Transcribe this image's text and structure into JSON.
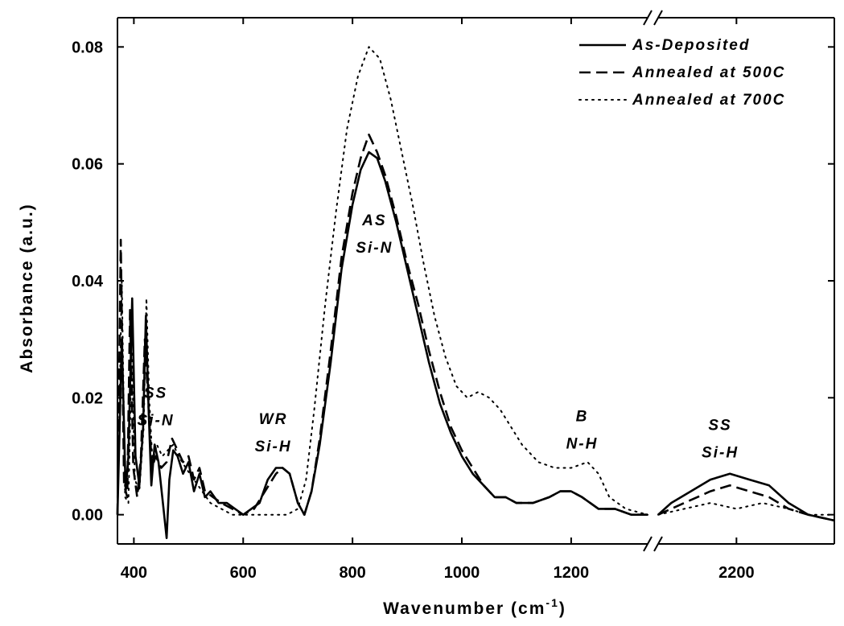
{
  "chart_data": {
    "type": "line",
    "xlabel": "Wavenumber (cm",
    "xlabel_superscript": "-1",
    "xlabel_suffix": ")",
    "ylabel": "Absorbance (a.u.)",
    "ylim": [
      -0.005,
      0.085
    ],
    "xlim": [
      370,
      2350
    ],
    "x_axis_break": {
      "from": 1340,
      "to": 2080
    },
    "x_ticks": [
      400,
      600,
      800,
      1000,
      1200,
      2200
    ],
    "x_tick_labels": [
      "400",
      "600",
      "800",
      "1000",
      "1200",
      "2200"
    ],
    "y_ticks": [
      0.0,
      0.02,
      0.04,
      0.06,
      0.08
    ],
    "y_tick_labels": [
      "0.00",
      "0.02",
      "0.04",
      "0.06",
      "0.08"
    ],
    "legend_position": "top-right",
    "series": [
      {
        "name": "As-Deposited",
        "style": "solid",
        "points": [
          [
            370,
            0.0
          ],
          [
            378,
            0.03
          ],
          [
            385,
            0.004
          ],
          [
            390,
            0.01
          ],
          [
            397,
            0.037
          ],
          [
            403,
            0.01
          ],
          [
            410,
            0.005
          ],
          [
            417,
            0.015
          ],
          [
            422,
            0.034
          ],
          [
            427,
            0.018
          ],
          [
            432,
            0.005
          ],
          [
            438,
            0.012
          ],
          [
            445,
            0.009
          ],
          [
            452,
            0.003
          ],
          [
            460,
            -0.004
          ],
          [
            465,
            0.006
          ],
          [
            472,
            0.011
          ],
          [
            480,
            0.01
          ],
          [
            490,
            0.007
          ],
          [
            500,
            0.009
          ],
          [
            510,
            0.004
          ],
          [
            520,
            0.007
          ],
          [
            530,
            0.003
          ],
          [
            540,
            0.004
          ],
          [
            555,
            0.002
          ],
          [
            570,
            0.002
          ],
          [
            585,
            0.001
          ],
          [
            600,
            0.0
          ],
          [
            615,
            0.001
          ],
          [
            630,
            0.002
          ],
          [
            645,
            0.006
          ],
          [
            660,
            0.008
          ],
          [
            672,
            0.008
          ],
          [
            685,
            0.007
          ],
          [
            700,
            0.002
          ],
          [
            712,
            0.0
          ],
          [
            725,
            0.004
          ],
          [
            740,
            0.012
          ],
          [
            760,
            0.026
          ],
          [
            780,
            0.042
          ],
          [
            800,
            0.053
          ],
          [
            815,
            0.059
          ],
          [
            830,
            0.062
          ],
          [
            845,
            0.061
          ],
          [
            860,
            0.057
          ],
          [
            880,
            0.05
          ],
          [
            900,
            0.042
          ],
          [
            920,
            0.034
          ],
          [
            940,
            0.026
          ],
          [
            960,
            0.019
          ],
          [
            980,
            0.014
          ],
          [
            1000,
            0.01
          ],
          [
            1020,
            0.007
          ],
          [
            1040,
            0.005
          ],
          [
            1060,
            0.003
          ],
          [
            1080,
            0.003
          ],
          [
            1100,
            0.002
          ],
          [
            1130,
            0.002
          ],
          [
            1160,
            0.003
          ],
          [
            1180,
            0.004
          ],
          [
            1200,
            0.004
          ],
          [
            1220,
            0.003
          ],
          [
            1250,
            0.001
          ],
          [
            1280,
            0.001
          ],
          [
            1310,
            0.0
          ],
          [
            1340,
            0.0
          ],
          [
            2080,
            0.0
          ],
          [
            2100,
            0.002
          ],
          [
            2130,
            0.004
          ],
          [
            2160,
            0.006
          ],
          [
            2190,
            0.007
          ],
          [
            2220,
            0.006
          ],
          [
            2250,
            0.005
          ],
          [
            2280,
            0.002
          ],
          [
            2310,
            0.0
          ],
          [
            2350,
            -0.001
          ]
        ]
      },
      {
        "name": "Annealed at 500C",
        "style": "dash",
        "points": [
          [
            370,
            0.0
          ],
          [
            376,
            0.047
          ],
          [
            382,
            0.005
          ],
          [
            388,
            0.003
          ],
          [
            393,
            0.035
          ],
          [
            399,
            0.008
          ],
          [
            406,
            0.003
          ],
          [
            413,
            0.01
          ],
          [
            420,
            0.03
          ],
          [
            426,
            0.02
          ],
          [
            433,
            0.008
          ],
          [
            440,
            0.01
          ],
          [
            450,
            0.008
          ],
          [
            460,
            0.009
          ],
          [
            470,
            0.013
          ],
          [
            480,
            0.011
          ],
          [
            490,
            0.009
          ],
          [
            500,
            0.01
          ],
          [
            510,
            0.006
          ],
          [
            520,
            0.008
          ],
          [
            530,
            0.004
          ],
          [
            545,
            0.003
          ],
          [
            560,
            0.002
          ],
          [
            580,
            0.001
          ],
          [
            600,
            0.0
          ],
          [
            620,
            0.001
          ],
          [
            640,
            0.004
          ],
          [
            660,
            0.007
          ],
          [
            672,
            0.008
          ],
          [
            685,
            0.007
          ],
          [
            700,
            0.002
          ],
          [
            712,
            0.0
          ],
          [
            725,
            0.004
          ],
          [
            740,
            0.013
          ],
          [
            760,
            0.028
          ],
          [
            780,
            0.044
          ],
          [
            800,
            0.055
          ],
          [
            815,
            0.061
          ],
          [
            830,
            0.065
          ],
          [
            845,
            0.062
          ],
          [
            860,
            0.058
          ],
          [
            880,
            0.051
          ],
          [
            900,
            0.043
          ],
          [
            920,
            0.036
          ],
          [
            940,
            0.028
          ],
          [
            960,
            0.021
          ],
          [
            980,
            0.015
          ],
          [
            1000,
            0.011
          ],
          [
            1020,
            0.008
          ],
          [
            1040,
            0.005
          ],
          [
            1060,
            0.003
          ],
          [
            1080,
            0.003
          ],
          [
            1100,
            0.002
          ],
          [
            1130,
            0.002
          ],
          [
            1160,
            0.003
          ],
          [
            1180,
            0.004
          ],
          [
            1200,
            0.004
          ],
          [
            1220,
            0.003
          ],
          [
            1250,
            0.001
          ],
          [
            1280,
            0.001
          ],
          [
            1310,
            0.0
          ],
          [
            1340,
            0.0
          ],
          [
            2080,
            0.0
          ],
          [
            2120,
            0.002
          ],
          [
            2160,
            0.004
          ],
          [
            2190,
            0.005
          ],
          [
            2220,
            0.004
          ],
          [
            2250,
            0.003
          ],
          [
            2280,
            0.001
          ],
          [
            2310,
            0.0
          ],
          [
            2350,
            -0.001
          ]
        ]
      },
      {
        "name": "Annealed at 700C",
        "style": "dot",
        "points": [
          [
            370,
            0.0
          ],
          [
            378,
            0.04
          ],
          [
            384,
            0.003
          ],
          [
            390,
            0.002
          ],
          [
            396,
            0.028
          ],
          [
            402,
            0.006
          ],
          [
            410,
            0.004
          ],
          [
            418,
            0.015
          ],
          [
            423,
            0.037
          ],
          [
            428,
            0.02
          ],
          [
            434,
            0.009
          ],
          [
            442,
            0.012
          ],
          [
            452,
            0.01
          ],
          [
            462,
            0.011
          ],
          [
            472,
            0.012
          ],
          [
            482,
            0.01
          ],
          [
            495,
            0.008
          ],
          [
            510,
            0.006
          ],
          [
            525,
            0.004
          ],
          [
            540,
            0.002
          ],
          [
            560,
            0.001
          ],
          [
            580,
            0.0
          ],
          [
            600,
            0.0
          ],
          [
            630,
            0.0
          ],
          [
            650,
            0.0
          ],
          [
            680,
            0.0
          ],
          [
            700,
            0.001
          ],
          [
            715,
            0.006
          ],
          [
            730,
            0.018
          ],
          [
            750,
            0.036
          ],
          [
            770,
            0.052
          ],
          [
            790,
            0.066
          ],
          [
            810,
            0.075
          ],
          [
            830,
            0.08
          ],
          [
            850,
            0.078
          ],
          [
            870,
            0.071
          ],
          [
            890,
            0.062
          ],
          [
            910,
            0.053
          ],
          [
            930,
            0.043
          ],
          [
            950,
            0.034
          ],
          [
            970,
            0.027
          ],
          [
            990,
            0.022
          ],
          [
            1010,
            0.02
          ],
          [
            1030,
            0.021
          ],
          [
            1050,
            0.02
          ],
          [
            1070,
            0.018
          ],
          [
            1090,
            0.015
          ],
          [
            1110,
            0.012
          ],
          [
            1140,
            0.009
          ],
          [
            1170,
            0.008
          ],
          [
            1200,
            0.008
          ],
          [
            1230,
            0.009
          ],
          [
            1250,
            0.007
          ],
          [
            1270,
            0.003
          ],
          [
            1300,
            0.001
          ],
          [
            1340,
            0.0
          ],
          [
            2080,
            0.0
          ],
          [
            2120,
            0.001
          ],
          [
            2160,
            0.002
          ],
          [
            2200,
            0.001
          ],
          [
            2240,
            0.002
          ],
          [
            2280,
            0.001
          ],
          [
            2310,
            0.0
          ],
          [
            2350,
            0.0
          ]
        ]
      }
    ],
    "annotations": [
      {
        "lines": [
          "SS",
          "Si-N"
        ],
        "x": 440,
        "y": 0.02
      },
      {
        "lines": [
          "WR",
          "Si-H"
        ],
        "x": 655,
        "y": 0.0155
      },
      {
        "lines": [
          "AS",
          "Si-N"
        ],
        "x": 840,
        "y": 0.0495
      },
      {
        "lines": [
          "B",
          "N-H"
        ],
        "x": 1220,
        "y": 0.016
      },
      {
        "lines": [
          "SS",
          "Si-H"
        ],
        "x": 2175,
        "y": 0.0145
      }
    ]
  }
}
